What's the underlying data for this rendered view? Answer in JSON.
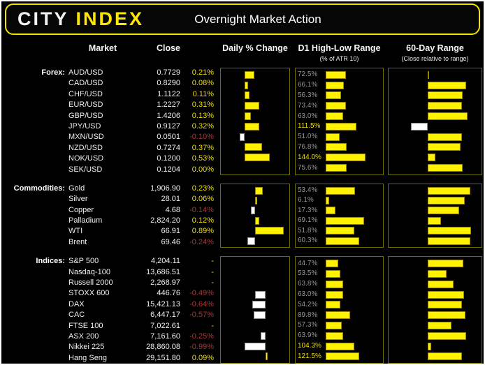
{
  "header": {
    "logo_city": "CITY",
    "logo_index": "INDEX",
    "title": "Overnight Market Action"
  },
  "columns": {
    "market": "Market",
    "close": "Close",
    "daily_change": "Daily % Change",
    "d1_range": "D1 High-Low Range",
    "d1_range_sub": "(% of ATR 10)",
    "range60": "60-Day Range",
    "range60_sub": "(Close relative to range)"
  },
  "colors": {
    "accent_yellow": "#FFE600",
    "bar_yellow": "#FFF200",
    "bar_white": "#FFFFFF",
    "positive_text": "#F2DE00",
    "negative_text": "#A93634",
    "d1_label_gray": "#969696",
    "d1_label_hot": "#F2DE00",
    "box_border": "#6E6A00",
    "background": "#000000"
  },
  "chart_data": {
    "type": "table",
    "r60_axis": {
      "min": -1,
      "max": 1,
      "zero_frac": 0.42
    },
    "sections": [
      {
        "id": "forex",
        "label": "Forex:",
        "daily_axis": {
          "min": -0.45,
          "max": 0.9
        },
        "d1_axis_max": 200,
        "rows": [
          {
            "market": "AUD/USD",
            "close": "0.7729",
            "change": 0.21,
            "change_label": "0.21%",
            "d1": 72.5,
            "d1_label": "72.5%",
            "r60": 0.03
          },
          {
            "market": "CAD/USD",
            "close": "0.8290",
            "change": 0.08,
            "change_label": "0.08%",
            "d1": 66.1,
            "d1_label": "66.1%",
            "r60": 0.86
          },
          {
            "market": "CHF/USD",
            "close": "1.1122",
            "change": 0.11,
            "change_label": "0.11%",
            "d1": 56.3,
            "d1_label": "56.3%",
            "r60": 0.79
          },
          {
            "market": "EUR/USD",
            "close": "1.2227",
            "change": 0.31,
            "change_label": "0.31%",
            "d1": 73.4,
            "d1_label": "73.4%",
            "r60": 0.76
          },
          {
            "market": "GBP/USD",
            "close": "1.4206",
            "change": 0.13,
            "change_label": "0.13%",
            "d1": 63.0,
            "d1_label": "63.0%",
            "r60": 0.89
          },
          {
            "market": "JPY/USD",
            "close": "0.9127",
            "change": 0.32,
            "change_label": "0.32%",
            "d1": 111.5,
            "d1_label": "111.5%",
            "r60": -0.39
          },
          {
            "market": "MXN/USD",
            "close": "0.0501",
            "change": -0.1,
            "change_label": "-0.10%",
            "d1": 51.0,
            "d1_label": "51.0%",
            "r60": 0.77
          },
          {
            "market": "NZD/USD",
            "close": "0.7274",
            "change": 0.37,
            "change_label": "0.37%",
            "d1": 76.8,
            "d1_label": "76.8%",
            "r60": 0.73
          },
          {
            "market": "NOK/USD",
            "close": "0.1200",
            "change": 0.53,
            "change_label": "0.53%",
            "d1": 144.0,
            "d1_label": "144.0%",
            "r60": 0.17
          },
          {
            "market": "SEK/USD",
            "close": "0.1204",
            "change": 0.0,
            "change_label": "0.00%",
            "d1": 75.6,
            "d1_label": "75.6%",
            "r60": 0.79
          }
        ]
      },
      {
        "id": "commodities",
        "label": "Commodities:",
        "daily_axis": {
          "min": -1.0,
          "max": 1.0
        },
        "d1_axis_max": 100,
        "rows": [
          {
            "market": "Gold",
            "close": "1,906.90",
            "change": 0.23,
            "change_label": "0.23%",
            "d1": 53.4,
            "d1_label": "53.4%",
            "r60": 0.95
          },
          {
            "market": "Silver",
            "close": "28.01",
            "change": 0.06,
            "change_label": "0.06%",
            "d1": 6.1,
            "d1_label": "6.1%",
            "r60": 0.83
          },
          {
            "market": "Copper",
            "close": "4.68",
            "change": -0.14,
            "change_label": "-0.14%",
            "d1": 17.3,
            "d1_label": "17.3%",
            "r60": 0.71
          },
          {
            "market": "Palladium",
            "close": "2,824.20",
            "change": 0.12,
            "change_label": "0.12%",
            "d1": 69.1,
            "d1_label": "69.1%",
            "r60": 0.29
          },
          {
            "market": "WTI",
            "close": "66.91",
            "change": 0.89,
            "change_label": "0.89%",
            "d1": 51.8,
            "d1_label": "51.8%",
            "r60": 0.97
          },
          {
            "market": "Brent",
            "close": "69.46",
            "change": -0.24,
            "change_label": "-0.24%",
            "d1": 60.3,
            "d1_label": "60.3%",
            "r60": 0.95
          }
        ]
      },
      {
        "id": "indices",
        "label": "Indices:",
        "daily_axis": {
          "min": -2.0,
          "max": 1.0
        },
        "d1_axis_max": 200,
        "rows": [
          {
            "market": "S&P 500",
            "close": "4,204.11",
            "change": null,
            "change_label": "-",
            "d1": 44.7,
            "d1_label": "44.7%",
            "r60": 0.8
          },
          {
            "market": "Nasdaq-100",
            "close": "13,686.51",
            "change": null,
            "change_label": "-",
            "d1": 53.5,
            "d1_label": "53.5%",
            "r60": 0.42
          },
          {
            "market": "Russell 2000",
            "close": "2,268.97",
            "change": null,
            "change_label": "-",
            "d1": 63.8,
            "d1_label": "63.8%",
            "r60": 0.58
          },
          {
            "market": "STOXX 600",
            "close": "446.76",
            "change": -0.49,
            "change_label": "-0.49%",
            "d1": 63.0,
            "d1_label": "63.0%",
            "r60": 0.82
          },
          {
            "market": "DAX",
            "close": "15,421.13",
            "change": -0.64,
            "change_label": "-0.64%",
            "d1": 54.2,
            "d1_label": "54.2%",
            "r60": 0.76
          },
          {
            "market": "CAC",
            "close": "6,447.17",
            "change": -0.57,
            "change_label": "-0.57%",
            "d1": 89.8,
            "d1_label": "89.8%",
            "r60": 0.85
          },
          {
            "market": "FTSE 100",
            "close": "7,022.61",
            "change": null,
            "change_label": "-",
            "d1": 57.3,
            "d1_label": "57.3%",
            "r60": 0.53
          },
          {
            "market": "ASX 200",
            "close": "7,161.60",
            "change": -0.25,
            "change_label": "-0.25%",
            "d1": 63.9,
            "d1_label": "63.9%",
            "r60": 0.86
          },
          {
            "market": "Nikkei 225",
            "close": "28,860.08",
            "change": -0.99,
            "change_label": "-0.99%",
            "d1": 104.3,
            "d1_label": "104.3%",
            "r60": 0.08
          },
          {
            "market": "Hang Seng",
            "close": "29,151.80",
            "change": 0.09,
            "change_label": "0.09%",
            "d1": 121.5,
            "d1_label": "121.5%",
            "r60": 0.77
          }
        ]
      }
    ]
  }
}
